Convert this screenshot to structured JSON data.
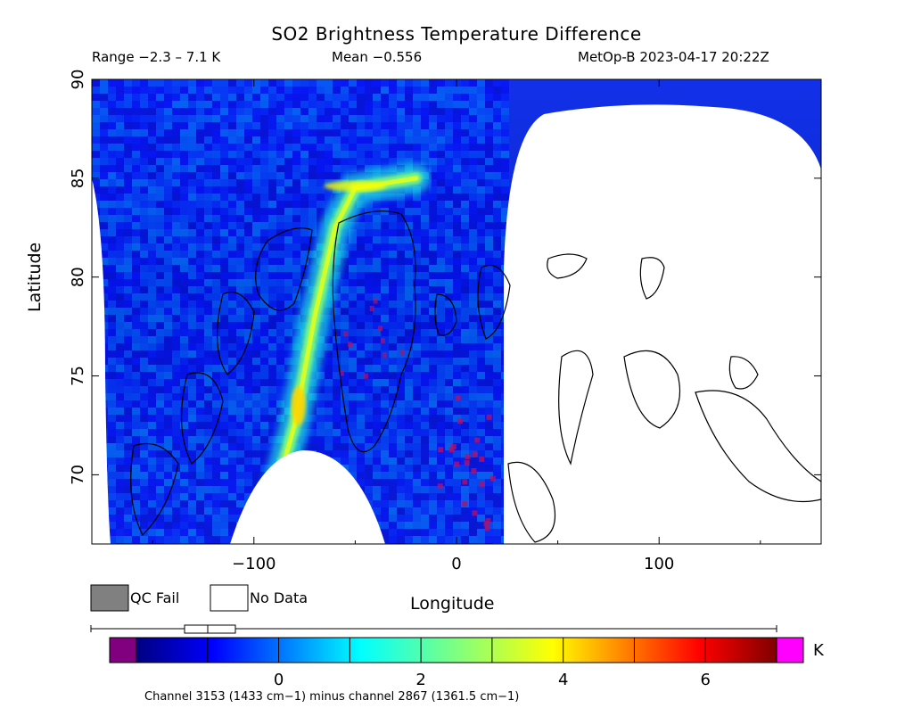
{
  "title": "SO2 Brightness Temperature Difference",
  "subtitle": {
    "range": "Range −2.3 – 7.1 K",
    "mean": "Mean −0.556",
    "source": "MetOp-B 2023-04-17 20:22Z"
  },
  "legend": {
    "qc_fail": "QC Fail",
    "no_data": "No Data",
    "qc_fail_color": "#808080",
    "no_data_color": "#ffffff"
  },
  "footer": "Channel 3153 (1433 cm−1) minus channel 2867 (1361.5 cm−1)",
  "chart_data": {
    "type": "heatmap",
    "title": "SO2 Brightness Temperature Difference",
    "xlabel": "Longitude",
    "ylabel": "Latitude",
    "xlim": [
      -180,
      180
    ],
    "ylim": [
      66.5,
      90
    ],
    "xticks": [
      -100,
      0,
      100
    ],
    "xtick_labels": [
      "−100",
      "0",
      "100"
    ],
    "yticks": [
      70,
      75,
      80,
      85,
      90
    ],
    "ytick_labels": [
      "70",
      "75",
      "80",
      "85",
      "90"
    ],
    "range_min": -2.3,
    "range_max": 7.1,
    "mean": -0.556,
    "units": "K",
    "colorbar": {
      "min": -2,
      "max": 7,
      "ticks": [
        0,
        2,
        4,
        6
      ],
      "tick_labels": [
        "0",
        "2",
        "4",
        "6"
      ],
      "unit_label": "K",
      "under_color": "#800080",
      "over_color": "#ff00ff"
    },
    "plume_track": [
      {
        "lon": -95,
        "lat": 67
      },
      {
        "lon": -80,
        "lat": 72.5
      },
      {
        "lon": -70,
        "lat": 78
      },
      {
        "lon": -60,
        "lat": 82.5
      },
      {
        "lon": -50,
        "lat": 84.5
      },
      {
        "lon": -20,
        "lat": 85
      }
    ],
    "plume_peak": {
      "lon": -78,
      "lat": 73.5,
      "value": 4.2
    },
    "background_value": -0.6
  }
}
